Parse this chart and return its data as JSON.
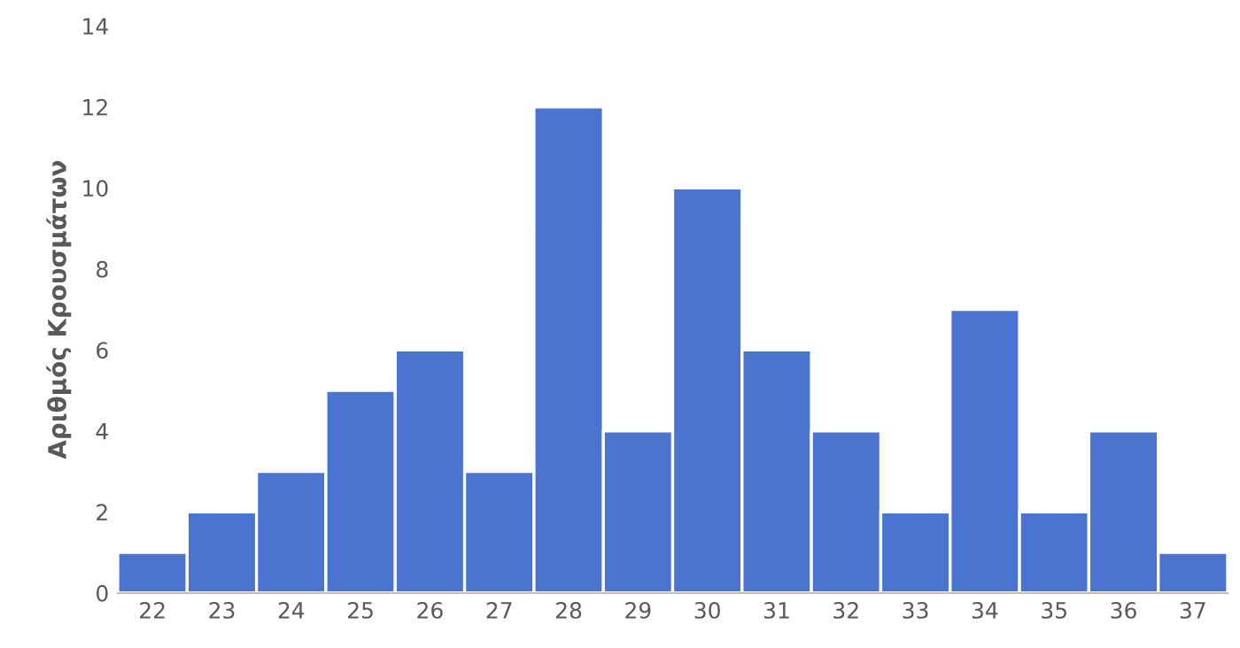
{
  "chart_data": {
    "type": "bar",
    "ylabel": "Αριθμός Κρουσμάτων",
    "categories": [
      "22",
      "23",
      "24",
      "25",
      "26",
      "27",
      "28",
      "29",
      "30",
      "31",
      "32",
      "33",
      "34",
      "35",
      "36",
      "37"
    ],
    "values": [
      1,
      2,
      3,
      5,
      6,
      3,
      12,
      4,
      10,
      6,
      4,
      2,
      7,
      2,
      4,
      1
    ],
    "color": "#4a74d0",
    "ylim": [
      0,
      14
    ],
    "yticks": [
      0,
      2,
      4,
      6,
      8,
      10,
      12,
      14
    ],
    "grid": false
  }
}
